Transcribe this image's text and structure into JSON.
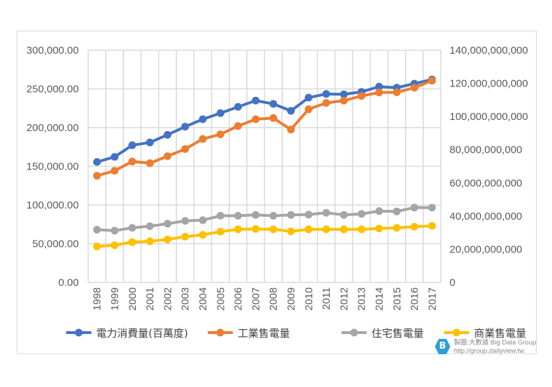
{
  "chart_data": {
    "type": "line",
    "title": "",
    "xlabel": "",
    "ylabel": "",
    "y2label": "",
    "grid": true,
    "legend_position": "bottom",
    "categories": [
      "1998",
      "1999",
      "2000",
      "2001",
      "2002",
      "2003",
      "2004",
      "2005",
      "2006",
      "2007",
      "2008",
      "2009",
      "2010",
      "2011",
      "2012",
      "2013",
      "2014",
      "2015",
      "2016",
      "2017"
    ],
    "ylim": [
      0,
      300000
    ],
    "yticks": [
      "0.00",
      "50,000.00",
      "100,000.00",
      "150,000.00",
      "200,000.00",
      "250,000.00",
      "300,000.00"
    ],
    "y2lim": [
      0,
      140000000000
    ],
    "y2ticks": [
      "0",
      "20,000,000,000",
      "40,000,000,000",
      "60,000,000,000",
      "80,000,000,000",
      "100,000,000,000",
      "120,000,000,000",
      "140,000,000,000"
    ],
    "series": [
      {
        "name": "電力消費量(百萬度)",
        "axis": "left",
        "color": "#4472c4",
        "values": [
          155600,
          162200,
          177200,
          180800,
          190700,
          201200,
          210800,
          218700,
          226800,
          234900,
          230600,
          221600,
          238700,
          243500,
          243000,
          246200,
          252900,
          251600,
          256800,
          262200
        ]
      },
      {
        "name": "工業售電量",
        "axis": "right",
        "color": "#ed7d31",
        "values": [
          64300000000,
          67300000000,
          72900000000,
          71900000000,
          76100000000,
          80400000000,
          86500000000,
          89300000000,
          94300000000,
          98400000000,
          99100000000,
          92200000000,
          104400000000,
          108200000000,
          109600000000,
          112400000000,
          114500000000,
          114600000000,
          117400000000,
          121600000000
        ]
      },
      {
        "name": "住宅售電量",
        "axis": "right",
        "color": "#a5a5a5",
        "values": [
          31800000000,
          31200000000,
          32900000000,
          33900000000,
          35400000000,
          37100000000,
          37500000000,
          40200000000,
          40200000000,
          40700000000,
          40200000000,
          40700000000,
          40900000000,
          42000000000,
          40700000000,
          41300000000,
          43000000000,
          42800000000,
          45100000000,
          45100000000
        ]
      },
      {
        "name": "商業售電量",
        "axis": "right",
        "color": "#ffc000",
        "values": [
          21700000000,
          22400000000,
          24300000000,
          24800000000,
          25900000000,
          27600000000,
          28700000000,
          30600000000,
          32000000000,
          32200000000,
          32000000000,
          30800000000,
          32000000000,
          32000000000,
          32000000000,
          32000000000,
          32500000000,
          32900000000,
          33600000000,
          34100000000
        ]
      }
    ]
  },
  "watermark": {
    "line1": "製圖:大數據 Big Data Group",
    "line2": "http://group.dailyview.tw"
  }
}
